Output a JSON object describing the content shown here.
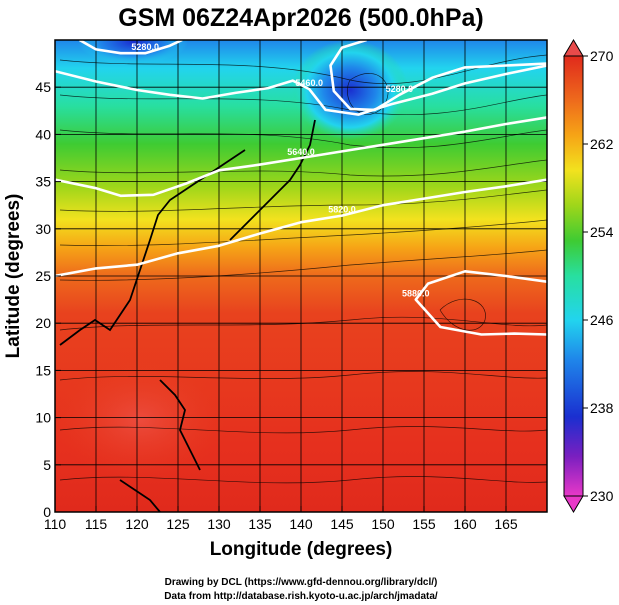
{
  "chart_data": {
    "type": "heatmap",
    "title": "GSM 06Z24Apr2026 (500.0hPa)",
    "xlabel": "Longitude (degrees)",
    "ylabel": "Latitude  (degrees)",
    "xlim": [
      110,
      170
    ],
    "ylim": [
      0,
      50
    ],
    "x_ticks": [
      "110",
      "115",
      "120",
      "125",
      "130",
      "135",
      "140",
      "145",
      "150",
      "155",
      "160",
      "165"
    ],
    "y_ticks": [
      "0",
      "5",
      "10",
      "15",
      "20",
      "25",
      "30",
      "35",
      "40",
      "45"
    ],
    "colorbar": {
      "range": [
        230,
        270
      ],
      "ticks": [
        "230",
        "238",
        "246",
        "254",
        "262",
        "270"
      ],
      "colors": [
        "#e838c8",
        "#7a1fc0",
        "#1a2fd0",
        "#1f86ea",
        "#22d4ee",
        "#28dfa0",
        "#3ecb33",
        "#9ed61a",
        "#f2e21e",
        "#f6a416",
        "#ee6a1c",
        "#e02a1c"
      ]
    },
    "contours": [
      {
        "label": "5820.0",
        "points": [
          [
            110,
            25
          ],
          [
            115,
            25.8
          ],
          [
            120,
            26.2
          ],
          [
            125,
            27.4
          ],
          [
            130,
            28.2
          ],
          [
            135,
            29.5
          ],
          [
            140,
            30.7
          ],
          [
            145,
            31.4
          ],
          [
            150,
            32.5
          ],
          [
            155,
            33.2
          ],
          [
            160,
            33.9
          ],
          [
            165,
            34.5
          ],
          [
            170,
            35.2
          ]
        ]
      },
      {
        "label": "5640.0",
        "points": [
          [
            110,
            35.2
          ],
          [
            115,
            34.3
          ],
          [
            118,
            33.5
          ],
          [
            122,
            33.6
          ],
          [
            126,
            34.8
          ],
          [
            130,
            36.2
          ],
          [
            135,
            36.8
          ],
          [
            140,
            37.5
          ],
          [
            145,
            38.2
          ],
          [
            150,
            38.9
          ],
          [
            155,
            39.6
          ],
          [
            160,
            40.3
          ],
          [
            165,
            41.1
          ],
          [
            170,
            41.8
          ]
        ]
      },
      {
        "label": "5460.0",
        "points": [
          [
            110,
            46.7
          ],
          [
            115,
            45.6
          ],
          [
            120,
            44.7
          ],
          [
            124,
            44.2
          ],
          [
            128,
            43.8
          ],
          [
            132,
            44.4
          ],
          [
            136,
            44.9
          ],
          [
            139,
            45.7
          ],
          [
            141,
            44.8
          ],
          [
            143,
            42.6
          ],
          [
            147,
            42.1
          ],
          [
            151,
            43.2
          ],
          [
            156,
            44.3
          ],
          [
            160,
            45.4
          ],
          [
            165,
            46.4
          ],
          [
            170,
            47.3
          ]
        ]
      },
      {
        "label": "5280.0",
        "points": [
          [
            113,
            50
          ],
          [
            115,
            49.0
          ],
          [
            118,
            48.6
          ],
          [
            121,
            48.6
          ],
          [
            124,
            49.4
          ],
          [
            125.5,
            50
          ]
        ]
      },
      {
        "label": "5280.0",
        "points": [
          [
            148,
            50
          ],
          [
            145,
            49.2
          ],
          [
            143.6,
            47.3
          ],
          [
            144.0,
            44.6
          ],
          [
            146.0,
            42.7
          ],
          [
            149.0,
            42.6
          ],
          [
            152.0,
            44.2
          ],
          [
            156.0,
            46.0
          ],
          [
            160.0,
            47.1
          ],
          [
            165.0,
            47.3
          ],
          [
            170.0,
            47.5
          ]
        ]
      },
      {
        "label": "5880.0",
        "points": [
          [
            170,
            24.4
          ],
          [
            165,
            25.0
          ],
          [
            160,
            25.5
          ],
          [
            155.5,
            24.2
          ],
          [
            154.0,
            22.5
          ],
          [
            157.0,
            19.6
          ],
          [
            162.0,
            18.8
          ],
          [
            166.0,
            18.9
          ],
          [
            170,
            18.8
          ]
        ]
      }
    ],
    "grid": true,
    "legend": "colorbar-right"
  },
  "credits": {
    "line1": "Drawing by DCL (https://www.gfd-dennou.org/library/dcl/)",
    "line2": "Data from http://database.rish.kyoto-u.ac.jp/arch/jmadata/"
  }
}
